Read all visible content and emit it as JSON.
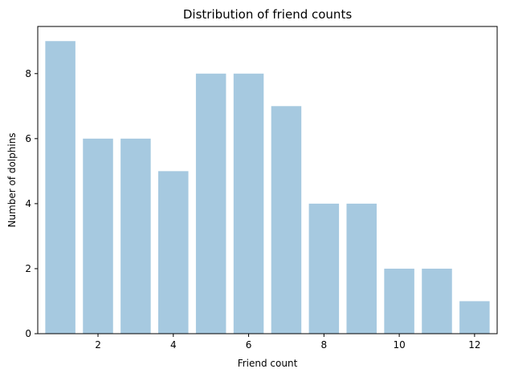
{
  "chart_data": {
    "type": "bar",
    "title": "Distribution of friend counts",
    "xlabel": "Friend count",
    "ylabel": "Number of dolphins",
    "x": [
      1,
      2,
      3,
      4,
      5,
      6,
      7,
      8,
      9,
      10,
      11,
      12
    ],
    "values": [
      9,
      6,
      6,
      5,
      8,
      8,
      7,
      4,
      4,
      2,
      2,
      1
    ],
    "xlim": [
      0.4,
      12.6
    ],
    "ylim": [
      0,
      9.45
    ],
    "xticks": [
      2,
      4,
      6,
      8,
      10,
      12
    ],
    "yticks": [
      0,
      2,
      4,
      6,
      8
    ],
    "bar_color": "#a6c9e0",
    "grid": false,
    "legend": "none"
  }
}
